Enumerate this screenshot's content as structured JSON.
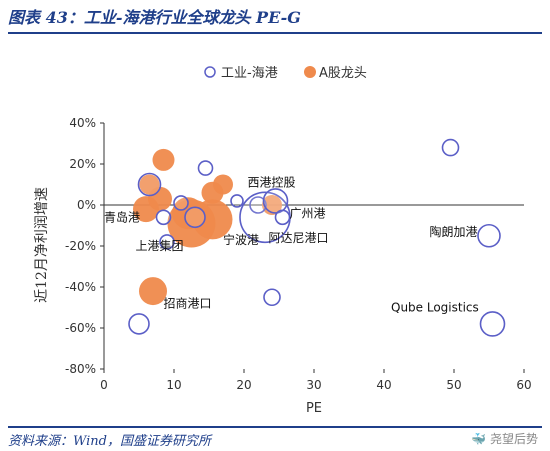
{
  "title": "图表 43：工业-海港行业全球龙头 PE-G",
  "source": "资料来源：Wind，国盛证券研究所",
  "watermark": "🐳 尧望后势",
  "colors": {
    "industry": "#5b5fc7",
    "leader": "#ef8a4c",
    "title": "#1f3f8a",
    "axis": "#333333"
  },
  "chart_data": {
    "type": "scatter",
    "title": "",
    "xlabel": "PE",
    "ylabel": "近12月净利润增速",
    "xlim": [
      0,
      60
    ],
    "ylim": [
      -80,
      40
    ],
    "xticks": [
      "0",
      "10",
      "20",
      "30",
      "40",
      "50",
      "60"
    ],
    "yticks": [
      "40%",
      "20%",
      "0%",
      "-20%",
      "-40%",
      "-60%",
      "-80%"
    ],
    "legend": {
      "placement": "top",
      "entries": [
        "工业-海港",
        "A股龙头"
      ]
    },
    "series": [
      {
        "name": "工业-海港",
        "points": [
          {
            "x": 6.5,
            "y": 10,
            "r": 11
          },
          {
            "x": 8.5,
            "y": -6,
            "r": 7
          },
          {
            "x": 9,
            "y": -18,
            "r": 7
          },
          {
            "x": 11,
            "y": 1,
            "r": 7
          },
          {
            "x": 13,
            "y": -6,
            "r": 10
          },
          {
            "x": 14.5,
            "y": 18,
            "r": 7
          },
          {
            "x": 19,
            "y": 2,
            "r": 6
          },
          {
            "x": 22,
            "y": 0,
            "r": 8
          },
          {
            "x": 23,
            "y": -6,
            "r": 25
          },
          {
            "x": 24,
            "y": -45,
            "r": 8
          },
          {
            "x": 24.5,
            "y": 2,
            "r": 12
          },
          {
            "x": 25.5,
            "y": -6,
            "r": 7
          },
          {
            "x": 49.5,
            "y": 28,
            "r": 8
          },
          {
            "x": 55,
            "y": -15,
            "r": 11
          },
          {
            "x": 55.5,
            "y": -58,
            "r": 12
          },
          {
            "x": 5,
            "y": -58,
            "r": 10
          }
        ]
      },
      {
        "name": "A股龙头",
        "points": [
          {
            "x": 6,
            "y": -2,
            "r": 13
          },
          {
            "x": 6.5,
            "y": 10,
            "r": 10
          },
          {
            "x": 8,
            "y": 3,
            "r": 12
          },
          {
            "x": 8.5,
            "y": 22,
            "r": 11
          },
          {
            "x": 12,
            "y": -4,
            "r": 16
          },
          {
            "x": 12.5,
            "y": -9,
            "r": 24
          },
          {
            "x": 15.5,
            "y": -7,
            "r": 20
          },
          {
            "x": 15.5,
            "y": 6,
            "r": 11
          },
          {
            "x": 17,
            "y": 10,
            "r": 10
          },
          {
            "x": 24,
            "y": 0,
            "r": 10
          },
          {
            "x": 7,
            "y": -42,
            "r": 14
          }
        ]
      }
    ],
    "annotations": [
      {
        "text": "西港控股",
        "x": 20.5,
        "y": 9
      },
      {
        "text": "青岛港",
        "x": 0,
        "y": -8
      },
      {
        "text": "广州港",
        "x": 26.5,
        "y": -6
      },
      {
        "text": "宁波港",
        "x": 17,
        "y": -19
      },
      {
        "text": "阿达尼港口",
        "x": 23.5,
        "y": -18
      },
      {
        "text": "上港集团",
        "x": 4.5,
        "y": -22
      },
      {
        "text": "陶朗加港",
        "x": 46.5,
        "y": -15
      },
      {
        "text": "招商港口",
        "x": 8.5,
        "y": -50
      },
      {
        "text": "Qube Logistics",
        "x": 41,
        "y": -52
      }
    ]
  }
}
